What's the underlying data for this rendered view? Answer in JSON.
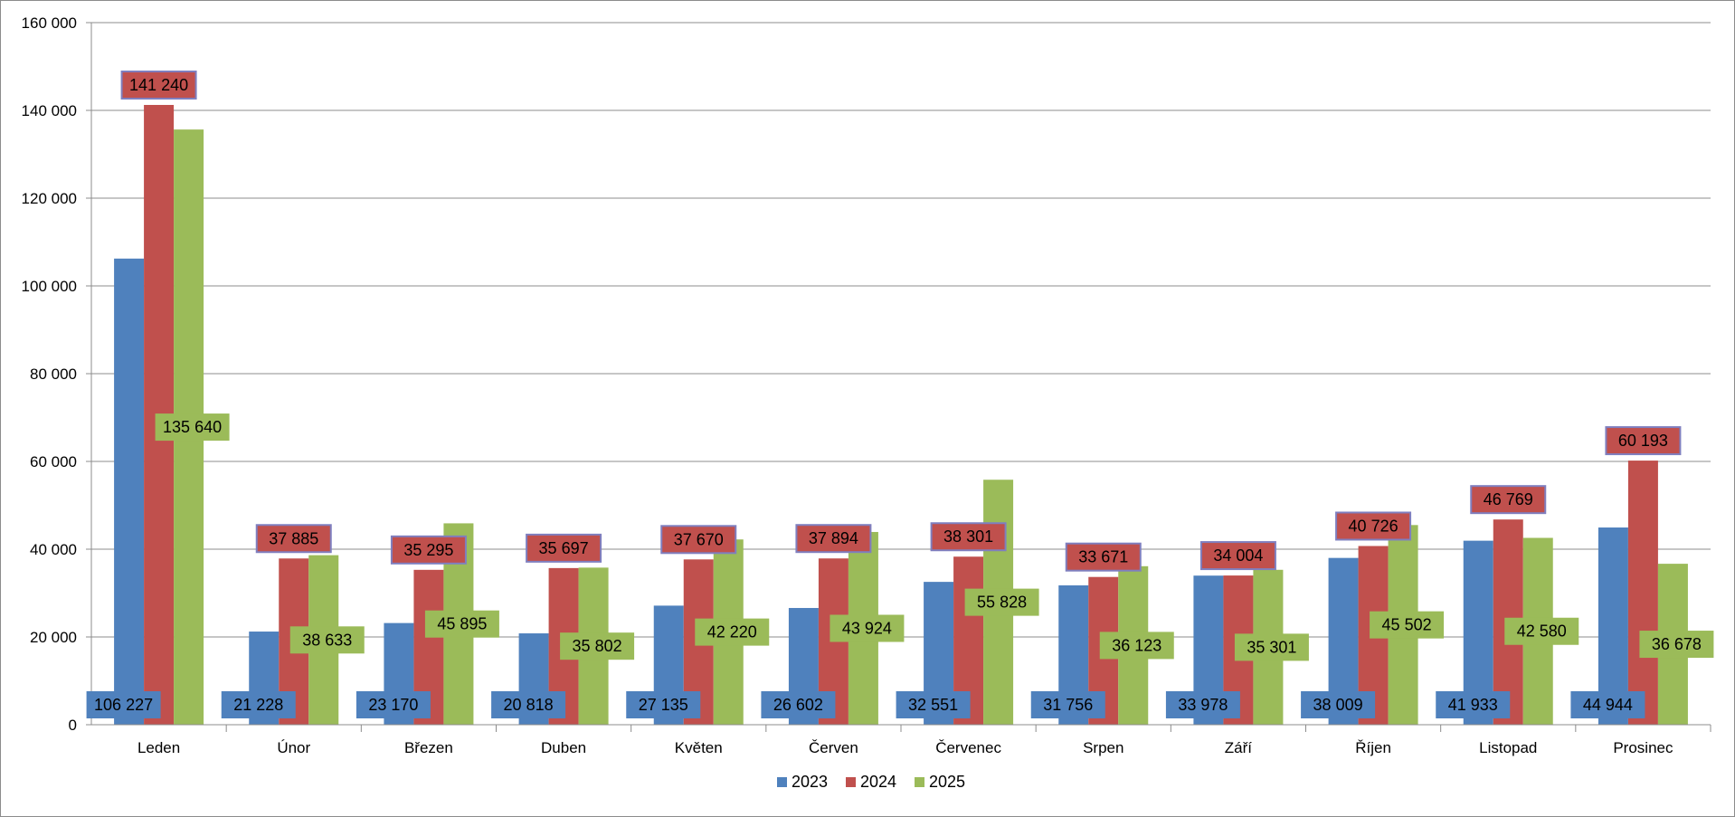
{
  "chart_data": {
    "type": "bar",
    "categories": [
      "Leden",
      "Únor",
      "Březen",
      "Duben",
      "Květen",
      "Červen",
      "Červenec",
      "Srpen",
      "Září",
      "Říjen",
      "Listopad",
      "Prosinec"
    ],
    "series": [
      {
        "name": "2023",
        "color": "#4f81bd",
        "label_bg": "#4f81bd",
        "values": [
          106227,
          21228,
          23170,
          20818,
          27135,
          26602,
          32551,
          31756,
          33978,
          38009,
          41933,
          44944
        ],
        "labels": [
          "106 227",
          "21 228",
          "23 170",
          "20 818",
          "27 135",
          "26 602",
          "32 551",
          "31 756",
          "33 978",
          "38 009",
          "41 933",
          "44 944"
        ]
      },
      {
        "name": "2024",
        "color": "#c0504d",
        "label_bg": "#c0504d",
        "values": [
          141240,
          37885,
          35295,
          35697,
          37670,
          37894,
          38301,
          33671,
          34004,
          40726,
          46769,
          60193
        ],
        "labels": [
          "141 240",
          "37 885",
          "35 295",
          "35 697",
          "37 670",
          "37 894",
          "38 301",
          "33 671",
          "34 004",
          "40 726",
          "46 769",
          "60 193"
        ]
      },
      {
        "name": "2025",
        "color": "#9bbb59",
        "label_bg": "#9bbb59",
        "values": [
          135640,
          38633,
          45895,
          35802,
          42220,
          43924,
          55828,
          36123,
          35301,
          45502,
          42580,
          36678
        ],
        "labels": [
          "135 640",
          "38 633",
          "45 895",
          "35 802",
          "42 220",
          "43 924",
          "55 828",
          "36 123",
          "35 301",
          "45 502",
          "42 580",
          "36 678"
        ]
      }
    ],
    "ylim": [
      0,
      160000
    ],
    "yticks": [
      0,
      20000,
      40000,
      60000,
      80000,
      100000,
      120000,
      140000,
      160000
    ],
    "ytick_labels": [
      "0",
      "20 000",
      "40 000",
      "60 000",
      "80 000",
      "100 000",
      "120 000",
      "140 000",
      "160 000"
    ],
    "grid": true,
    "legend_position": "bottom-center",
    "title": "",
    "xlabel": "",
    "ylabel": ""
  }
}
